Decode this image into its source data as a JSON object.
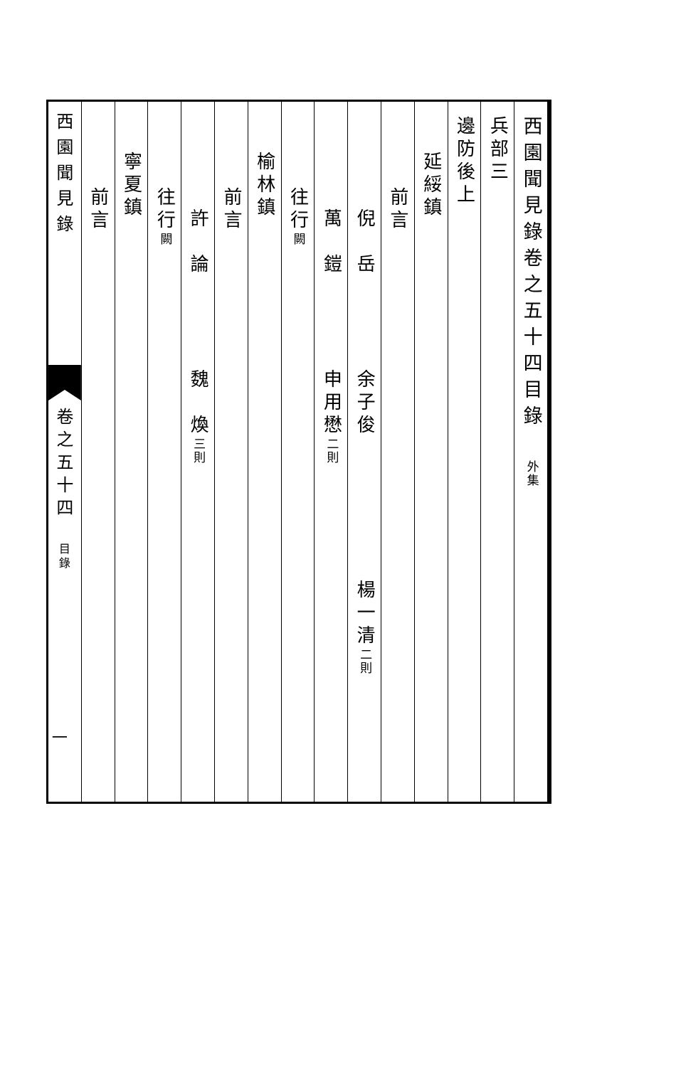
{
  "page": {
    "background_color": "#ffffff",
    "ink_color": "#000000",
    "frame_border_width": 3,
    "font_family": "SimSun",
    "main_fontsize": 27,
    "body_fontsize": 26,
    "note_fontsize": 17,
    "running_fontsize": 24
  },
  "running": {
    "top_title": "西園聞見錄",
    "volume": "卷之五十四",
    "section": "目錄",
    "page_number": "一"
  },
  "columns": [
    {
      "type": "title",
      "text": "西園聞見錄卷之五十四目錄",
      "note": "外集"
    },
    {
      "type": "heading",
      "text": "兵部三"
    },
    {
      "type": "subheading",
      "text": "邊防後上"
    },
    {
      "type": "section",
      "text": "延綏鎮",
      "indent": "small"
    },
    {
      "type": "label",
      "text": "前言",
      "indent": "medium"
    },
    {
      "type": "names",
      "entries": [
        {
          "name": "倪　岳",
          "note": ""
        },
        {
          "name": "余子俊",
          "note": ""
        },
        {
          "name": "楊一清",
          "note": "二則"
        }
      ],
      "indent": "large"
    },
    {
      "type": "names",
      "entries": [
        {
          "name": "萬　鎧",
          "note": ""
        },
        {
          "name": "申用懋",
          "note": "二則"
        }
      ],
      "indent": "large"
    },
    {
      "type": "label",
      "text": "往行",
      "note_after": "闕",
      "indent": "medium"
    },
    {
      "type": "section",
      "text": "榆林鎮",
      "indent": "small"
    },
    {
      "type": "label",
      "text": "前言",
      "indent": "medium"
    },
    {
      "type": "names",
      "entries": [
        {
          "name": "許　論",
          "note": ""
        },
        {
          "name": "魏　煥",
          "note": "三則"
        }
      ],
      "indent": "large"
    },
    {
      "type": "label",
      "text": "往行",
      "note_after": "闕",
      "indent": "medium"
    },
    {
      "type": "section",
      "text": "寧夏鎮",
      "indent": "small"
    },
    {
      "type": "label",
      "text": "前言",
      "indent": "medium"
    }
  ]
}
